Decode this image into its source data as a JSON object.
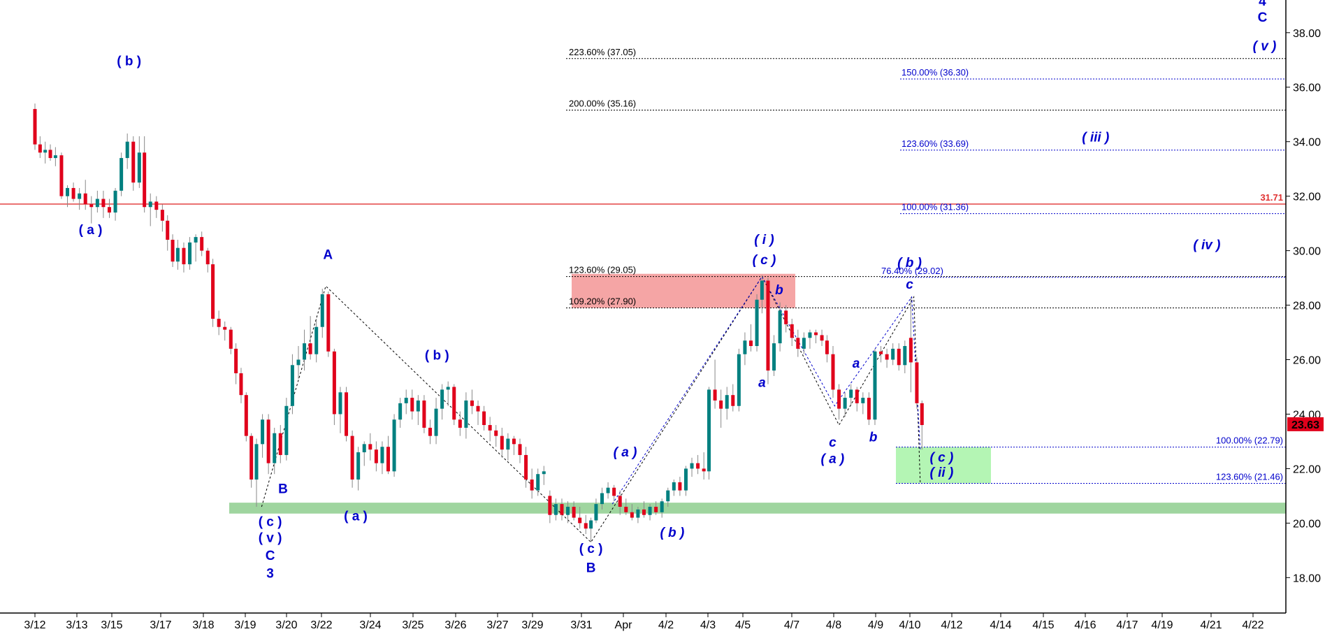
{
  "chart_data": {
    "type": "candlestick",
    "x_tick_labels": [
      "3/12",
      "3/13",
      "3/15",
      "3/17",
      "3/18",
      "3/19",
      "3/20",
      "3/22",
      "3/24",
      "3/25",
      "3/26",
      "3/27",
      "3/29",
      "3/31",
      "Apr",
      "4/2",
      "4/3",
      "4/5",
      "4/7",
      "4/8",
      "4/9",
      "4/10",
      "4/12",
      "4/14",
      "4/15",
      "4/16",
      "4/17",
      "4/19",
      "4/21",
      "4/22"
    ],
    "y_ticks": [
      "38.00",
      "36.00",
      "34.00",
      "32.00",
      "30.00",
      "28.00",
      "26.00",
      "24.00",
      "22.00",
      "20.00",
      "18.00"
    ],
    "ylim": [
      16.7,
      39.2
    ],
    "grid": false,
    "colors": {
      "up": "#008080",
      "down": "#e0001b",
      "wave_label": "#0000cc",
      "fib_black": "#000000",
      "fib_blue": "#0000cc",
      "resistance": "#e03030",
      "support_zone": "#9fd59f",
      "target_zone": "#b4f5b4",
      "reaction_zone": "#f5a5a5"
    },
    "price_levels": [
      {
        "label": "31.71",
        "value": 31.71,
        "color": "#e03030"
      },
      {
        "label": "23.63",
        "value": 23.63,
        "color": "#e0001b",
        "badge": true
      }
    ],
    "fib_levels_black": [
      {
        "label": "223.60% (37.05)",
        "value": 37.05
      },
      {
        "label": "200.00% (35.16)",
        "value": 35.16
      },
      {
        "label": "123.60% (29.05)",
        "value": 29.05
      },
      {
        "label": "109.20% (27.90)",
        "value": 27.9
      }
    ],
    "fib_levels_blue": [
      {
        "label": "150.00% (36.30)",
        "value": 36.3
      },
      {
        "label": "123.60% (33.69)",
        "value": 33.69
      },
      {
        "label": "100.00% (31.36)",
        "value": 31.36
      },
      {
        "label": "76.40% (29.02)",
        "value": 29.02
      },
      {
        "label": "100.00% (22.79)",
        "value": 22.79
      },
      {
        "label": "123.60% (21.46)",
        "value": 21.46
      }
    ],
    "zones": [
      {
        "name": "support",
        "y_range": [
          20.35,
          20.75
        ]
      },
      {
        "name": "target",
        "y_range": [
          21.46,
          22.79
        ]
      },
      {
        "name": "reaction",
        "y_range": [
          27.9,
          29.15
        ]
      }
    ],
    "wave_labels": [
      {
        "text": "( b )",
        "x": 2.2,
        "y": 36.8
      },
      {
        "text": "( a )",
        "x": 1.3,
        "y": 30.6
      },
      {
        "text": "A",
        "x": 6.85,
        "y": 29.7
      },
      {
        "text": "B",
        "x": 5.8,
        "y": 21.1
      },
      {
        "text": "( c )",
        "x": 5.5,
        "y": 19.9
      },
      {
        "text": "( v )",
        "x": 5.5,
        "y": 19.3
      },
      {
        "text": "C",
        "x": 5.5,
        "y": 18.65
      },
      {
        "text": "3",
        "x": 5.5,
        "y": 18.0
      },
      {
        "text": "( a )",
        "x": 7.5,
        "y": 20.1
      },
      {
        "text": "( b )",
        "x": 9.4,
        "y": 26.0
      },
      {
        "text": "( c )",
        "x": 13.0,
        "y": 18.9
      },
      {
        "text": "B",
        "x": 13.0,
        "y": 18.2
      },
      {
        "text": "4",
        "x": 28.7,
        "y": 39.0
      },
      {
        "text": "C",
        "x": 28.7,
        "y": 38.4
      }
    ],
    "wave_labels_italic": [
      {
        "text": "( a )",
        "x": 13.8,
        "y": 22.45
      },
      {
        "text": "( b )",
        "x": 14.9,
        "y": 19.5
      },
      {
        "text": "( i )",
        "x": 17.05,
        "y": 30.25
      },
      {
        "text": "( c )",
        "x": 17.05,
        "y": 29.5
      },
      {
        "text": "b",
        "x": 17.4,
        "y": 28.4
      },
      {
        "text": "a",
        "x": 17.0,
        "y": 25.0
      },
      {
        "text": "( iii )",
        "x": 24.8,
        "y": 34.0
      },
      {
        "text": "( iv )",
        "x": 27.4,
        "y": 30.05
      },
      {
        "text": "( v )",
        "x": 28.75,
        "y": 37.35
      },
      {
        "text": "c",
        "x": 18.65,
        "y": 22.8
      },
      {
        "text": "( a )",
        "x": 18.65,
        "y": 22.2
      },
      {
        "text": "a",
        "x": 19.2,
        "y": 25.7
      },
      {
        "text": "b",
        "x": 19.6,
        "y": 23.0
      },
      {
        "text": "( b )",
        "x": 20.45,
        "y": 29.4
      },
      {
        "text": "c",
        "x": 20.45,
        "y": 28.6
      },
      {
        "text": "( c )",
        "x": 21.2,
        "y": 22.25
      },
      {
        "text": "( ii )",
        "x": 21.2,
        "y": 21.7
      }
    ],
    "wave_path_points": [
      [
        5.3,
        20.6
      ],
      [
        6.8,
        28.7
      ],
      [
        13.0,
        19.3
      ],
      [
        17.0,
        29.05
      ],
      [
        18.8,
        23.6
      ],
      [
        20.55,
        28.3
      ],
      [
        20.7,
        21.46
      ]
    ],
    "candles": [
      [
        0.0,
        35.2,
        35.4,
        33.7,
        33.9
      ],
      [
        0.12,
        33.9,
        34.2,
        33.4,
        33.6
      ],
      [
        0.24,
        33.6,
        34.0,
        33.2,
        33.7
      ],
      [
        0.36,
        33.7,
        33.9,
        33.3,
        33.4
      ],
      [
        0.48,
        33.4,
        33.8,
        33.1,
        33.5
      ],
      [
        0.62,
        33.5,
        33.6,
        31.9,
        32.0
      ],
      [
        0.76,
        32.0,
        32.4,
        31.6,
        32.3
      ],
      [
        0.9,
        32.3,
        32.5,
        31.8,
        31.9
      ],
      [
        1.04,
        31.9,
        32.3,
        31.5,
        32.1
      ],
      [
        1.18,
        32.1,
        32.6,
        31.5,
        31.7
      ],
      [
        1.32,
        31.7,
        32.0,
        31.0,
        31.6
      ],
      [
        1.46,
        31.6,
        32.2,
        31.4,
        31.9
      ],
      [
        1.6,
        31.9,
        32.2,
        31.2,
        31.6
      ],
      [
        1.74,
        31.6,
        31.9,
        31.2,
        31.4
      ],
      [
        1.88,
        31.4,
        32.3,
        31.1,
        32.2
      ],
      [
        2.02,
        32.2,
        33.6,
        32.0,
        33.4
      ],
      [
        2.16,
        33.4,
        34.3,
        33.0,
        34.0
      ],
      [
        2.3,
        34.0,
        34.2,
        32.2,
        32.5
      ],
      [
        2.44,
        32.5,
        34.2,
        32.3,
        33.6
      ],
      [
        2.56,
        33.6,
        34.2,
        31.4,
        31.6
      ],
      [
        2.7,
        31.6,
        32.1,
        30.9,
        31.8
      ],
      [
        2.84,
        31.8,
        32.0,
        31.2,
        31.5
      ],
      [
        2.98,
        31.5,
        31.7,
        30.7,
        31.1
      ],
      [
        3.1,
        31.1,
        31.3,
        30.0,
        30.4
      ],
      [
        3.22,
        30.4,
        30.6,
        29.4,
        29.6
      ],
      [
        3.34,
        29.6,
        30.4,
        29.3,
        30.1
      ],
      [
        3.48,
        30.1,
        30.3,
        29.2,
        29.5
      ],
      [
        3.62,
        29.5,
        30.5,
        29.3,
        30.3
      ],
      [
        3.76,
        30.3,
        30.6,
        29.6,
        30.5
      ],
      [
        3.9,
        30.5,
        30.7,
        29.8,
        30.0
      ],
      [
        4.04,
        30.0,
        30.1,
        29.2,
        29.5
      ],
      [
        4.16,
        29.5,
        29.7,
        27.2,
        27.5
      ],
      [
        4.3,
        27.5,
        27.8,
        26.9,
        27.2
      ],
      [
        4.44,
        27.2,
        27.4,
        26.7,
        27.1
      ],
      [
        4.58,
        27.1,
        27.2,
        26.2,
        26.4
      ],
      [
        4.7,
        26.4,
        26.6,
        25.1,
        25.5
      ],
      [
        4.82,
        25.5,
        25.7,
        24.4,
        24.7
      ],
      [
        4.94,
        24.7,
        24.8,
        23.0,
        23.2
      ],
      [
        5.06,
        23.2,
        23.3,
        21.3,
        21.6
      ],
      [
        5.18,
        21.6,
        23.1,
        20.6,
        22.9
      ],
      [
        5.32,
        22.9,
        24.0,
        22.4,
        23.8
      ],
      [
        5.46,
        23.8,
        24.0,
        21.8,
        22.2
      ],
      [
        5.6,
        22.2,
        23.5,
        21.8,
        23.3
      ],
      [
        5.74,
        23.3,
        23.6,
        22.2,
        22.5
      ],
      [
        5.88,
        22.5,
        24.6,
        22.3,
        24.3
      ],
      [
        6.02,
        24.3,
        26.2,
        24.0,
        25.8
      ],
      [
        6.16,
        25.8,
        26.5,
        25.3,
        26.0
      ],
      [
        6.3,
        26.0,
        27.1,
        25.6,
        26.6
      ],
      [
        6.44,
        26.6,
        27.6,
        26.0,
        26.2
      ],
      [
        6.58,
        26.2,
        27.5,
        25.9,
        27.2
      ],
      [
        6.72,
        27.2,
        28.6,
        26.8,
        28.4
      ],
      [
        6.86,
        28.4,
        28.5,
        26.1,
        26.3
      ],
      [
        7.0,
        26.3,
        26.4,
        23.6,
        24.0
      ],
      [
        7.14,
        24.0,
        25.0,
        23.3,
        24.8
      ],
      [
        7.28,
        24.8,
        25.0,
        23.0,
        23.2
      ],
      [
        7.42,
        23.2,
        23.4,
        21.3,
        21.6
      ],
      [
        7.56,
        21.6,
        22.8,
        21.2,
        22.6
      ],
      [
        7.7,
        22.6,
        23.0,
        22.1,
        22.9
      ],
      [
        7.84,
        22.9,
        23.3,
        22.3,
        22.7
      ],
      [
        7.98,
        22.7,
        23.0,
        21.9,
        22.2
      ],
      [
        8.12,
        22.2,
        23.0,
        21.8,
        22.8
      ],
      [
        8.26,
        22.8,
        23.2,
        21.8,
        21.9
      ],
      [
        8.4,
        21.9,
        24.0,
        21.7,
        23.8
      ],
      [
        8.54,
        23.8,
        24.6,
        23.5,
        24.4
      ],
      [
        8.68,
        24.4,
        24.9,
        24.0,
        24.6
      ],
      [
        8.82,
        24.6,
        24.9,
        23.8,
        24.1
      ],
      [
        8.96,
        24.1,
        24.7,
        23.6,
        24.5
      ],
      [
        9.1,
        24.5,
        24.7,
        23.3,
        23.5
      ],
      [
        9.24,
        23.5,
        23.8,
        22.9,
        23.2
      ],
      [
        9.38,
        23.2,
        24.6,
        22.9,
        24.2
      ],
      [
        9.52,
        24.2,
        25.1,
        23.8,
        24.9
      ],
      [
        9.66,
        24.9,
        25.2,
        24.3,
        25.0
      ],
      [
        9.8,
        25.0,
        25.1,
        23.6,
        23.8
      ],
      [
        9.94,
        23.8,
        24.1,
        23.2,
        23.5
      ],
      [
        10.08,
        23.5,
        24.8,
        23.1,
        24.5
      ],
      [
        10.22,
        24.5,
        24.9,
        24.0,
        24.3
      ],
      [
        10.36,
        24.3,
        24.5,
        23.6,
        24.1
      ],
      [
        10.5,
        24.1,
        24.3,
        23.4,
        23.6
      ],
      [
        10.64,
        23.6,
        23.9,
        23.0,
        23.4
      ],
      [
        10.78,
        23.4,
        23.6,
        22.8,
        23.2
      ],
      [
        10.92,
        23.2,
        23.5,
        22.4,
        22.7
      ],
      [
        11.06,
        22.7,
        23.3,
        22.3,
        23.1
      ],
      [
        11.2,
        23.1,
        23.2,
        22.5,
        22.9
      ],
      [
        11.34,
        22.9,
        23.1,
        22.2,
        22.5
      ],
      [
        11.48,
        22.5,
        22.8,
        21.3,
        21.6
      ],
      [
        11.62,
        21.6,
        22.0,
        20.9,
        21.2
      ],
      [
        11.76,
        21.2,
        22.0,
        21.0,
        21.8
      ],
      [
        11.9,
        21.8,
        22.1,
        21.4,
        21.9
      ],
      [
        12.04,
        21.0,
        21.2,
        20.0,
        20.3
      ],
      [
        12.18,
        20.3,
        20.9,
        20.1,
        20.7
      ],
      [
        12.32,
        20.7,
        20.9,
        20.1,
        20.3
      ],
      [
        12.46,
        20.3,
        20.8,
        20.0,
        20.6
      ],
      [
        12.6,
        20.6,
        20.8,
        20.1,
        20.2
      ],
      [
        12.74,
        20.2,
        20.6,
        19.8,
        20.0
      ],
      [
        12.88,
        20.0,
        20.3,
        19.6,
        19.8
      ],
      [
        13.0,
        19.8,
        20.2,
        19.3,
        20.1
      ],
      [
        13.12,
        20.1,
        20.9,
        20.0,
        20.7
      ],
      [
        13.26,
        20.7,
        21.3,
        20.5,
        21.1
      ],
      [
        13.4,
        21.1,
        21.5,
        20.9,
        21.3
      ],
      [
        13.54,
        21.3,
        21.4,
        20.8,
        21.0
      ],
      [
        13.68,
        21.0,
        21.2,
        20.3,
        20.6
      ],
      [
        13.82,
        20.6,
        20.9,
        20.3,
        20.4
      ],
      [
        13.96,
        20.4,
        20.7,
        20.1,
        20.2
      ],
      [
        14.1,
        20.2,
        20.6,
        20.0,
        20.5
      ],
      [
        14.24,
        20.5,
        20.8,
        20.2,
        20.3
      ],
      [
        14.38,
        20.3,
        20.7,
        20.1,
        20.6
      ],
      [
        14.52,
        20.6,
        20.8,
        20.3,
        20.4
      ],
      [
        14.66,
        20.4,
        20.9,
        20.2,
        20.8
      ],
      [
        14.8,
        20.8,
        21.3,
        20.6,
        21.2
      ],
      [
        14.94,
        21.2,
        21.6,
        21.0,
        21.5
      ],
      [
        15.08,
        21.5,
        21.7,
        21.0,
        21.2
      ],
      [
        15.22,
        21.2,
        22.1,
        21.0,
        22.0
      ],
      [
        15.36,
        22.0,
        22.4,
        21.7,
        22.2
      ],
      [
        15.5,
        22.2,
        22.5,
        21.8,
        22.0
      ],
      [
        15.64,
        22.0,
        22.6,
        21.6,
        21.9
      ],
      [
        15.76,
        21.9,
        25.0,
        21.6,
        24.9
      ],
      [
        15.9,
        24.9,
        26.0,
        24.2,
        24.5
      ],
      [
        16.04,
        24.5,
        24.9,
        23.5,
        24.2
      ],
      [
        16.18,
        24.2,
        25.0,
        23.8,
        24.7
      ],
      [
        16.32,
        24.7,
        25.1,
        24.1,
        24.3
      ],
      [
        16.46,
        24.3,
        26.4,
        24.1,
        26.2
      ],
      [
        16.6,
        26.2,
        27.0,
        25.8,
        26.7
      ],
      [
        16.74,
        26.7,
        27.3,
        26.3,
        26.5
      ],
      [
        16.88,
        26.5,
        28.4,
        26.3,
        28.2
      ],
      [
        17.0,
        28.2,
        29.1,
        27.7,
        28.9
      ],
      [
        17.14,
        28.9,
        29.0,
        25.1,
        25.6
      ],
      [
        17.28,
        25.6,
        26.9,
        25.4,
        26.6
      ],
      [
        17.42,
        26.6,
        28.1,
        26.3,
        27.8
      ],
      [
        17.56,
        27.8,
        28.0,
        27.0,
        27.3
      ],
      [
        17.7,
        27.3,
        27.5,
        26.5,
        26.8
      ],
      [
        17.84,
        26.8,
        27.1,
        26.1,
        26.4
      ],
      [
        17.98,
        26.4,
        27.0,
        26.2,
        26.8
      ],
      [
        18.12,
        26.8,
        27.1,
        26.4,
        27.0
      ],
      [
        18.26,
        27.0,
        27.1,
        26.6,
        26.9
      ],
      [
        18.4,
        26.9,
        27.1,
        26.5,
        26.7
      ],
      [
        18.52,
        26.7,
        26.9,
        25.9,
        26.2
      ],
      [
        18.66,
        26.2,
        26.5,
        24.6,
        24.9
      ],
      [
        18.8,
        24.9,
        25.1,
        23.8,
        24.2
      ],
      [
        18.94,
        24.2,
        24.8,
        23.9,
        24.6
      ],
      [
        19.08,
        24.6,
        25.1,
        24.3,
        24.9
      ],
      [
        19.22,
        24.9,
        25.0,
        24.1,
        24.4
      ],
      [
        19.36,
        24.4,
        24.8,
        24.0,
        24.6
      ],
      [
        19.5,
        24.6,
        24.8,
        23.6,
        23.8
      ],
      [
        19.64,
        23.8,
        26.4,
        23.6,
        26.3
      ],
      [
        19.78,
        26.3,
        26.5,
        25.9,
        26.2
      ],
      [
        19.92,
        26.2,
        26.4,
        25.7,
        26.0
      ],
      [
        20.06,
        26.0,
        26.6,
        25.8,
        26.4
      ],
      [
        20.2,
        26.4,
        26.6,
        25.6,
        25.8
      ],
      [
        20.34,
        25.8,
        26.7,
        25.5,
        26.5
      ],
      [
        20.48,
        26.8,
        28.3,
        24.8,
        25.9
      ],
      [
        20.62,
        25.9,
        26.1,
        24.2,
        24.4
      ],
      [
        20.74,
        24.4,
        24.5,
        22.7,
        23.6
      ]
    ],
    "price_badge": "23.63"
  }
}
